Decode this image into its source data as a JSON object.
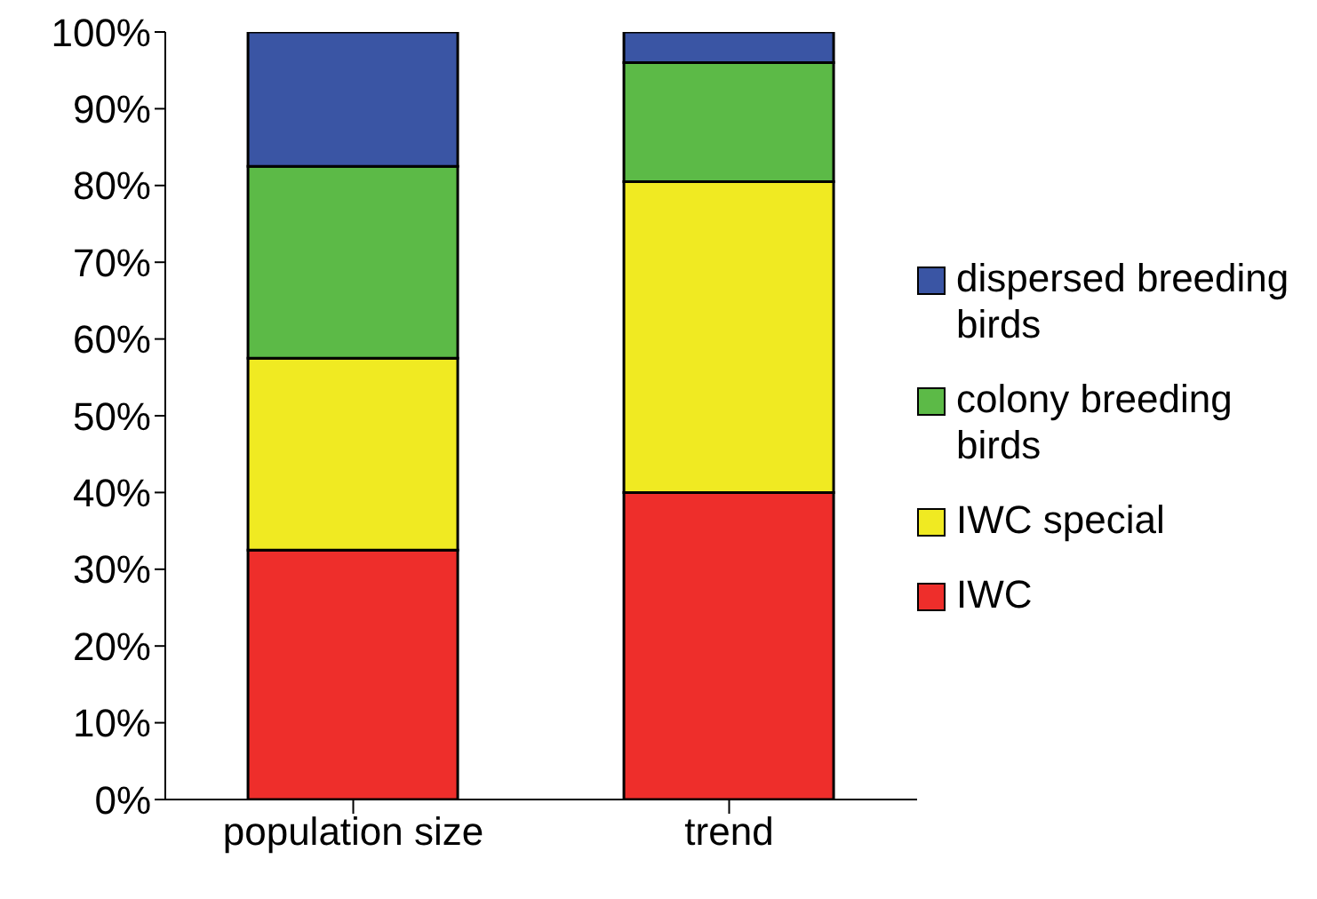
{
  "chart_data": {
    "type": "bar",
    "stacked": true,
    "categories": [
      "population size",
      "trend"
    ],
    "series": [
      {
        "name": "IWC",
        "color": "#ee2e2b",
        "values": [
          32.5,
          40
        ]
      },
      {
        "name": "IWC special",
        "color": "#f0ea22",
        "values": [
          25,
          40.5
        ]
      },
      {
        "name": "colony breeding birds",
        "color": "#5cba47",
        "values": [
          25,
          15.5
        ]
      },
      {
        "name": "dispersed breeding birds",
        "color": "#3a55a4",
        "values": [
          17.5,
          4
        ]
      }
    ],
    "ylim": [
      0,
      100
    ],
    "yticks": [
      {
        "value": 0,
        "label": "0%"
      },
      {
        "value": 10,
        "label": "10%"
      },
      {
        "value": 20,
        "label": "20%"
      },
      {
        "value": 30,
        "label": "30%"
      },
      {
        "value": 40,
        "label": "40%"
      },
      {
        "value": 50,
        "label": "50%"
      },
      {
        "value": 60,
        "label": "60%"
      },
      {
        "value": 70,
        "label": "70%"
      },
      {
        "value": 80,
        "label": "80%"
      },
      {
        "value": 90,
        "label": "90%"
      },
      {
        "value": 100,
        "label": "100%"
      }
    ],
    "grid": false,
    "legend": "right"
  }
}
